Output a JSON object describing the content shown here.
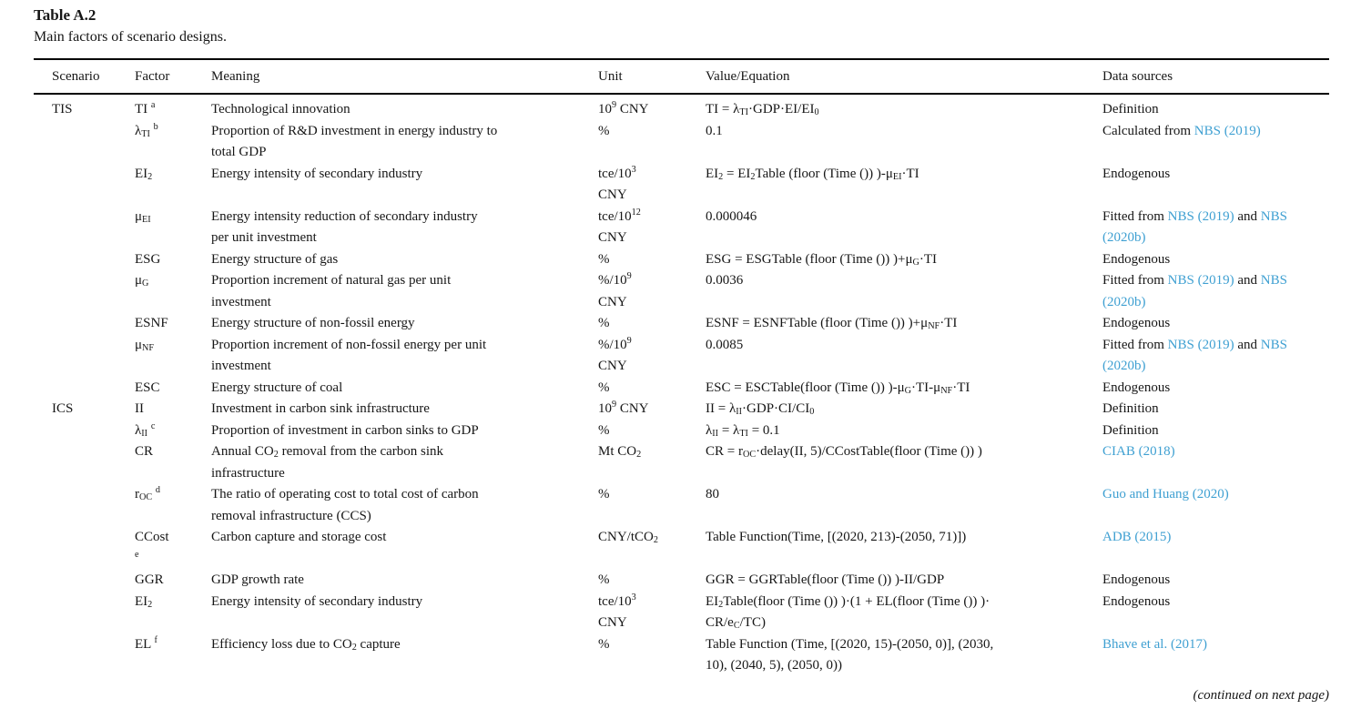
{
  "caption": {
    "label": "Table A.2",
    "description": "Main factors of scenario designs."
  },
  "columns": [
    "Scenario",
    "Factor",
    "Meaning",
    "Unit",
    "Value/Equation",
    "Data sources"
  ],
  "colors": {
    "link_blue": "#3fa0d2",
    "text": "#161616",
    "rule": "#000000"
  },
  "table": {
    "rows": [
      {
        "scenario": "TIS",
        "factor": "TI <sup>a</sup>",
        "meaning": "Technological innovation",
        "unit": "10<sup>9</sup> CNY",
        "value": "TI = λ<sub>TI</sub>·GDP·EI/EI<sub>0</sub>",
        "source": [
          {
            "t": "Definition",
            "link": false
          }
        ]
      },
      {
        "scenario": "",
        "factor": "λ<sub>TI</sub> <sup>b</sup>",
        "meaning": "Proportion of R&amp;D investment in energy industry to<br>total GDP",
        "unit": "%",
        "value": "0.1",
        "source": [
          {
            "t": "Calculated from ",
            "link": false
          },
          {
            "t": "NBS (2019)",
            "link": true
          }
        ]
      },
      {
        "scenario": "",
        "factor": "EI<sub>2</sub>",
        "meaning": "Energy intensity of secondary industry",
        "unit": "tce/10<sup>3</sup><br>CNY",
        "value": "EI<sub>2</sub> = EI<sub>2</sub>Table (floor (Time ()) )-μ<sub>EI</sub>·TI",
        "source": [
          {
            "t": "Endogenous",
            "link": false
          }
        ]
      },
      {
        "scenario": "",
        "factor": "μ<sub>EI</sub>",
        "meaning": "Energy intensity reduction of secondary industry<br>per unit investment",
        "unit": "tce/10<sup>12</sup><br>CNY",
        "value": "0.000046",
        "source": [
          {
            "t": "Fitted from ",
            "link": false
          },
          {
            "t": "NBS (2019)",
            "link": true
          },
          {
            "t": " and ",
            "link": false
          },
          {
            "t": "NBS (2020b)",
            "link": true
          }
        ]
      },
      {
        "scenario": "",
        "factor": "ESG",
        "meaning": "Energy structure of gas",
        "unit": "%",
        "value": "ESG = ESGTable (floor (Time ()) )+μ<sub>G</sub>·TI",
        "source": [
          {
            "t": "Endogenous",
            "link": false
          }
        ]
      },
      {
        "scenario": "",
        "factor": "μ<sub>G</sub>",
        "meaning": "Proportion increment of natural gas per unit<br>investment",
        "unit": "%/10<sup>9</sup><br>CNY",
        "value": "0.0036",
        "source": [
          {
            "t": "Fitted from ",
            "link": false
          },
          {
            "t": "NBS (2019)",
            "link": true
          },
          {
            "t": " and ",
            "link": false
          },
          {
            "t": "NBS (2020b)",
            "link": true
          }
        ]
      },
      {
        "scenario": "",
        "factor": "ESNF",
        "meaning": "Energy structure of non-fossil energy",
        "unit": "%",
        "value": "ESNF = ESNFTable (floor (Time ()) )+μ<sub>NF</sub>·TI",
        "source": [
          {
            "t": "Endogenous",
            "link": false
          }
        ]
      },
      {
        "scenario": "",
        "factor": "μ<sub>NF</sub>",
        "meaning": "Proportion increment of non-fossil energy per unit<br>investment",
        "unit": "%/10<sup>9</sup><br>CNY",
        "value": "0.0085",
        "source": [
          {
            "t": "Fitted from ",
            "link": false
          },
          {
            "t": "NBS (2019)",
            "link": true
          },
          {
            "t": " and ",
            "link": false
          },
          {
            "t": "NBS (2020b)",
            "link": true
          }
        ]
      },
      {
        "scenario": "",
        "factor": "ESC",
        "meaning": "Energy structure of coal",
        "unit": "%",
        "value": "ESC = ESCTable(floor (Time ()) )-μ<sub>G</sub>·TI-μ<sub>NF</sub>·TI",
        "source": [
          {
            "t": "Endogenous",
            "link": false
          }
        ]
      },
      {
        "scenario": "ICS",
        "factor": "II",
        "meaning": "Investment in carbon sink infrastructure",
        "unit": "10<sup>9</sup> CNY",
        "value": "II = λ<sub>II</sub>·GDP·CI/CI<sub>0</sub>",
        "source": [
          {
            "t": "Definition",
            "link": false
          }
        ]
      },
      {
        "scenario": "",
        "factor": "λ<sub>II</sub> <sup>c</sup>",
        "meaning": "Proportion of investment in carbon sinks to GDP",
        "unit": "%",
        "value": "λ<sub>II</sub> = λ<sub>TI</sub> = 0.1",
        "source": [
          {
            "t": "Definition",
            "link": false
          }
        ]
      },
      {
        "scenario": "",
        "factor": "CR",
        "meaning": "Annual CO<sub>2</sub> removal from the carbon sink<br>infrastructure",
        "unit": "Mt CO<sub>2</sub>",
        "value": "CR = r<sub>OC</sub>·delay(II, 5)/CCostTable(floor (Time ()) )",
        "source": [
          {
            "t": "CIAB (2018)",
            "link": true
          }
        ]
      },
      {
        "scenario": "",
        "factor": "r<sub>OC</sub> <sup>d</sup>",
        "meaning": "The ratio of operating cost to total cost of carbon<br>removal infrastructure (CCS)",
        "unit": "%",
        "value": "80",
        "source": [
          {
            "t": "Guo and Huang (2020)",
            "link": true
          }
        ]
      },
      {
        "scenario": "",
        "factor": "CCost<br><sup>e</sup>",
        "meaning": "Carbon capture and storage cost",
        "unit": "CNY/tCO<sub>2</sub>",
        "value": "Table Function(Time, [(2020, 213)-(2050, 71)])",
        "source": [
          {
            "t": "ADB (2015)",
            "link": true
          }
        ]
      },
      {
        "scenario": "",
        "factor": "GGR",
        "meaning": "GDP growth rate",
        "unit": "%",
        "value": "GGR = GGRTable(floor (Time ()) )-II/GDP",
        "source": [
          {
            "t": "Endogenous",
            "link": false
          }
        ]
      },
      {
        "scenario": "",
        "factor": "EI<sub>2</sub>",
        "meaning": "Energy intensity of secondary industry",
        "unit": "tce/10<sup>3</sup><br>CNY",
        "value": "EI<sub>2</sub>Table(floor (Time ()) )·(1 + EL(floor (Time ()) )·<br>CR/e<sub>C</sub>/TC)",
        "source": [
          {
            "t": "Endogenous",
            "link": false
          }
        ]
      },
      {
        "scenario": "",
        "factor": "EL <sup>f</sup>",
        "meaning": "Efficiency loss due to CO<sub>2</sub> capture",
        "unit": "%",
        "value": "Table Function (Time, [(2020, 15)-(2050, 0)], (2030,<br>10), (2040, 5), (2050, 0))",
        "source": [
          {
            "t": "Bhave et al. (2017)",
            "link": true
          }
        ]
      }
    ]
  },
  "footer": {
    "note": "(continued on next page)"
  }
}
